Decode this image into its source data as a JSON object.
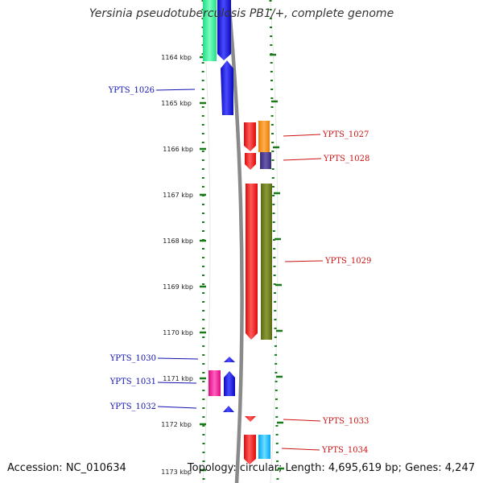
{
  "title": "Yersinia pseudotuberculosis PB1/+, complete genome",
  "footer": {
    "accession": "Accession: NC_010634",
    "summary": "Topology: circular; Length: 4,695,619 bp; Genes: 4,247"
  },
  "colors": {
    "background": "#ffffff",
    "backbone": "#8a8a8a",
    "ruler_ticks": "#1a7a1a",
    "left_label": "#1010b0",
    "right_label": "#cc1010"
  },
  "ruler": {
    "ticks": [
      {
        "label": "1164 kbp"
      },
      {
        "label": "1165 kbp"
      },
      {
        "label": "1166 kbp"
      },
      {
        "label": "1167 kbp"
      },
      {
        "label": "1168 kbp"
      },
      {
        "label": "1169 kbp"
      },
      {
        "label": "1170 kbp"
      },
      {
        "label": "1171 kbp"
      },
      {
        "label": "1172 kbp"
      },
      {
        "label": "1173 kbp"
      }
    ]
  },
  "genes": {
    "left": [
      {
        "label": "YPTS_1026",
        "color": "#1010b0"
      },
      {
        "label": "YPTS_1030",
        "color": "#1010b0"
      },
      {
        "label": "YPTS_1031",
        "color": "#1010b0"
      },
      {
        "label": "YPTS_1032",
        "color": "#1010b0"
      }
    ],
    "right": [
      {
        "label": "YPTS_1027",
        "color": "#cc1010"
      },
      {
        "label": "YPTS_1028",
        "color": "#cc1010"
      },
      {
        "label": "YPTS_1029",
        "color": "#cc1010"
      },
      {
        "label": "YPTS_1033",
        "color": "#cc1010"
      },
      {
        "label": "YPTS_1034",
        "color": "#cc1010"
      }
    ]
  },
  "features": [
    {
      "name": "left-green-block",
      "color": "#22dd88"
    },
    {
      "name": "blue-block-top",
      "color": "#1010ee"
    },
    {
      "name": "blue-arrow-1026",
      "color": "#1010ee"
    },
    {
      "name": "red-arrow-1027",
      "color": "#ff1010"
    },
    {
      "name": "orange-block-1027",
      "color": "#ff8c10"
    },
    {
      "name": "red-arrow-1028",
      "color": "#ff1010"
    },
    {
      "name": "purple-block-1028",
      "color": "#4a3a8a"
    },
    {
      "name": "red-arrow-1029",
      "color": "#ff1010"
    },
    {
      "name": "olive-block-1029",
      "color": "#6b7a1a"
    },
    {
      "name": "blue-arrow-1030",
      "color": "#1010ee"
    },
    {
      "name": "magenta-block-1031",
      "color": "#ee1090"
    },
    {
      "name": "blue-arrow-1031",
      "color": "#1010ee"
    },
    {
      "name": "blue-arrow-1032",
      "color": "#1010ee"
    },
    {
      "name": "red-arrow-1033",
      "color": "#ff1010"
    },
    {
      "name": "red-arrow-1034",
      "color": "#ff1010"
    },
    {
      "name": "cyan-block-1034",
      "color": "#10c0ff"
    }
  ]
}
